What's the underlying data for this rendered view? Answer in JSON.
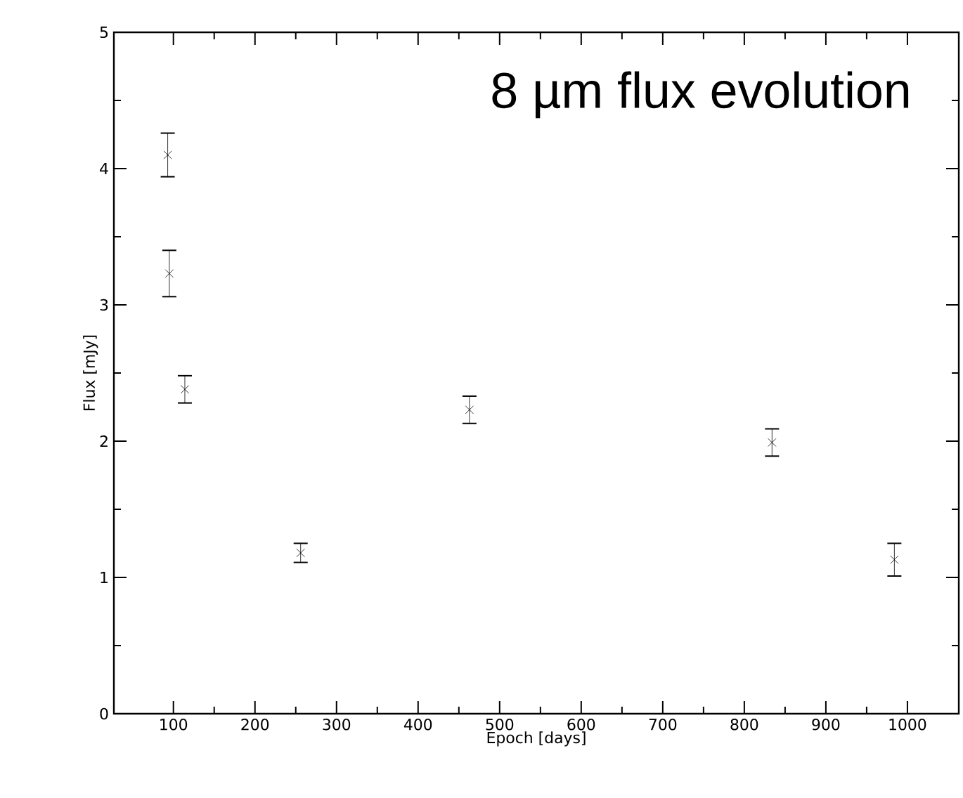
{
  "chart_data": {
    "type": "scatter",
    "xlabel": "Epoch [days]",
    "ylabel": "Flux [mJy]",
    "annotations": [
      "8 µm flux evolution"
    ],
    "x": [
      93,
      95,
      114,
      256,
      463,
      834,
      984
    ],
    "values": [
      4.1,
      3.23,
      2.38,
      1.18,
      2.23,
      1.99,
      1.13
    ],
    "errors": [
      0.16,
      0.17,
      0.1,
      0.07,
      0.1,
      0.1,
      0.12
    ],
    "color": "#000000",
    "marker": "cross",
    "xlim": [
      27,
      1063
    ],
    "ylim": [
      0,
      5
    ],
    "xticks": [
      100,
      200,
      300,
      400,
      500,
      600,
      700,
      800,
      900,
      1000
    ],
    "yticks": [
      0,
      1,
      2,
      3,
      4,
      5
    ]
  }
}
